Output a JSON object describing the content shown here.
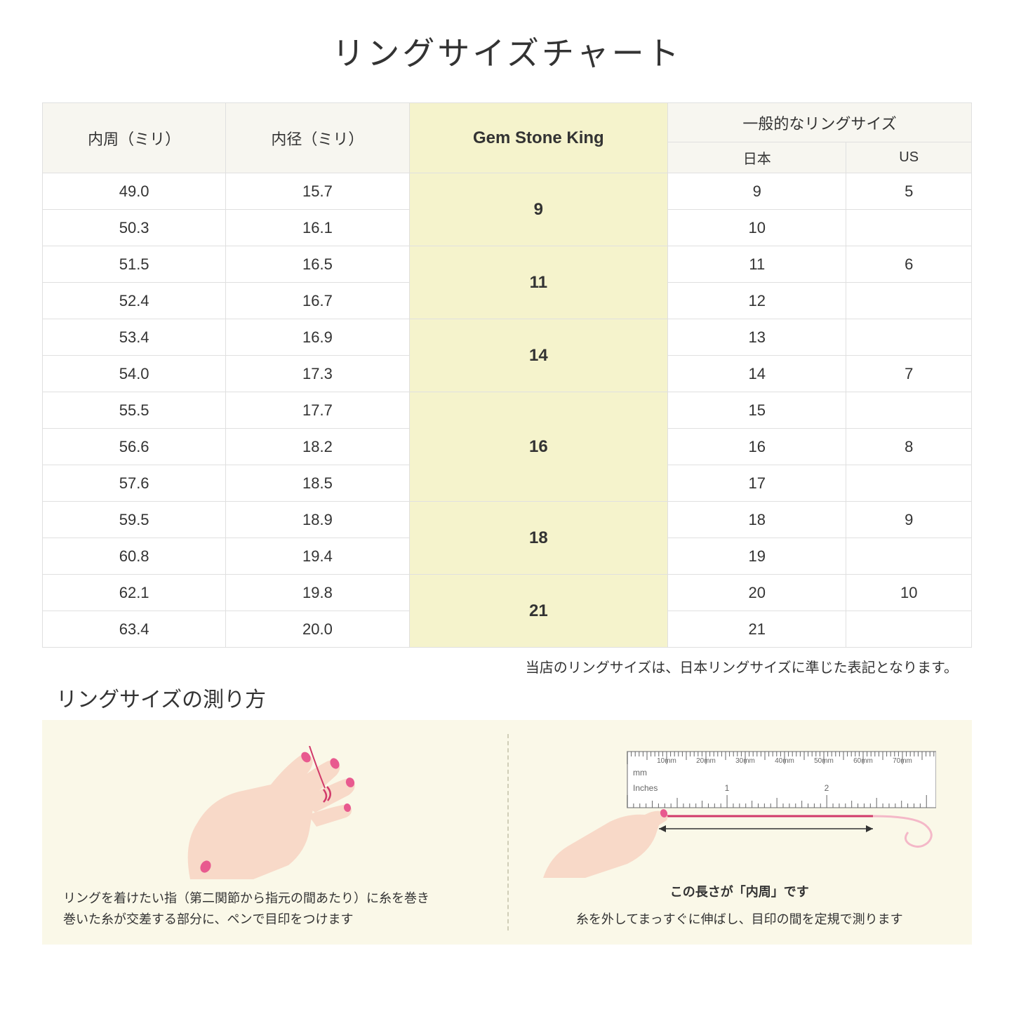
{
  "title": "リングサイズチャート",
  "table": {
    "headers": {
      "circumference": "内周（ミリ）",
      "diameter": "内径（ミリ）",
      "gsk": "Gem Stone King",
      "common": "一般的なリングサイズ",
      "japan": "日本",
      "us": "US"
    },
    "groups": [
      {
        "gsk": "9",
        "rows": [
          {
            "c": "49.0",
            "d": "15.7",
            "jp": "9",
            "us": "5"
          },
          {
            "c": "50.3",
            "d": "16.1",
            "jp": "10",
            "us": ""
          }
        ]
      },
      {
        "gsk": "11",
        "rows": [
          {
            "c": "51.5",
            "d": "16.5",
            "jp": "11",
            "us": "6"
          },
          {
            "c": "52.4",
            "d": "16.7",
            "jp": "12",
            "us": ""
          }
        ]
      },
      {
        "gsk": "14",
        "rows": [
          {
            "c": "53.4",
            "d": "16.9",
            "jp": "13",
            "us": ""
          },
          {
            "c": "54.0",
            "d": "17.3",
            "jp": "14",
            "us": "7"
          }
        ]
      },
      {
        "gsk": "16",
        "rows": [
          {
            "c": "55.5",
            "d": "17.7",
            "jp": "15",
            "us": ""
          },
          {
            "c": "56.6",
            "d": "18.2",
            "jp": "16",
            "us": "8"
          },
          {
            "c": "57.6",
            "d": "18.5",
            "jp": "17",
            "us": ""
          }
        ]
      },
      {
        "gsk": "18",
        "rows": [
          {
            "c": "59.5",
            "d": "18.9",
            "jp": "18",
            "us": "9"
          },
          {
            "c": "60.8",
            "d": "19.4",
            "jp": "19",
            "us": ""
          }
        ]
      },
      {
        "gsk": "21",
        "rows": [
          {
            "c": "62.1",
            "d": "19.8",
            "jp": "20",
            "us": "10"
          },
          {
            "c": "63.4",
            "d": "20.0",
            "jp": "21",
            "us": ""
          }
        ]
      }
    ]
  },
  "note": "当店のリングサイズは、日本リングサイズに準じた表記となります。",
  "howto": {
    "title": "リングサイズの測り方",
    "left_desc": "リングを着けたい指（第二関節から指元の間あたり）に糸を巻き\n巻いた糸が交差する部分に、ペンで目印をつけます",
    "ruler_label": "この長さが「内周」です",
    "right_desc": "糸を外してまっすぐに伸ばし、目印の間を定規で測ります",
    "ruler_marks": [
      "10mm",
      "20mm",
      "30mm",
      "40mm",
      "50mm",
      "60mm",
      "70mm"
    ],
    "ruler_unit_mm": "mm",
    "ruler_unit_in": "Inches",
    "ruler_inch_marks": [
      "1",
      "2"
    ]
  },
  "colors": {
    "header_bg": "#f7f6f0",
    "gsk_bg": "#f5f3cc",
    "panel_bg": "#faf8e8",
    "border": "#e0e0e0",
    "skin": "#f8d9c8",
    "nail": "#e85a8f",
    "thread": "#d13a6a"
  }
}
